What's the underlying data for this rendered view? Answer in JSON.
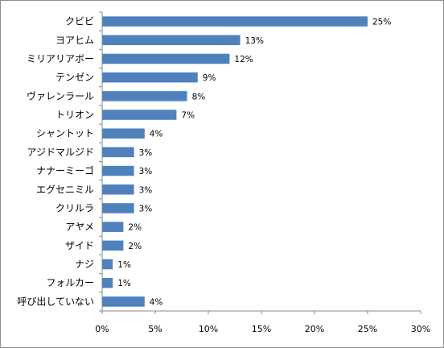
{
  "chart_data": {
    "type": "bar",
    "orientation": "horizontal",
    "categories": [
      "クビビ",
      "ヨアヒム",
      "ミリアリアボー",
      "テンゼン",
      "ヴァレンラール",
      "トリオン",
      "シャントット",
      "アジドマルジド",
      "ナナーミーゴ",
      "エグセニミル",
      "クリルラ",
      "アヤメ",
      "ザイド",
      "ナジ",
      "フォルカー",
      "呼び出していない"
    ],
    "values": [
      25,
      13,
      12,
      9,
      8,
      7,
      4,
      3,
      3,
      3,
      3,
      2,
      2,
      1,
      1,
      4
    ],
    "data_labels": [
      "25%",
      "13%",
      "12%",
      "9%",
      "8%",
      "7%",
      "4%",
      "3%",
      "3%",
      "3%",
      "3%",
      "2%",
      "2%",
      "1%",
      "1%",
      "4%"
    ],
    "x_ticks": [
      0,
      5,
      10,
      15,
      20,
      25,
      30
    ],
    "x_tick_labels": [
      "0%",
      "5%",
      "10%",
      "15%",
      "20%",
      "25%",
      "30%"
    ],
    "xlim": [
      0,
      30
    ],
    "bar_color": "#4F81BD",
    "grid": false,
    "legend": "none"
  }
}
